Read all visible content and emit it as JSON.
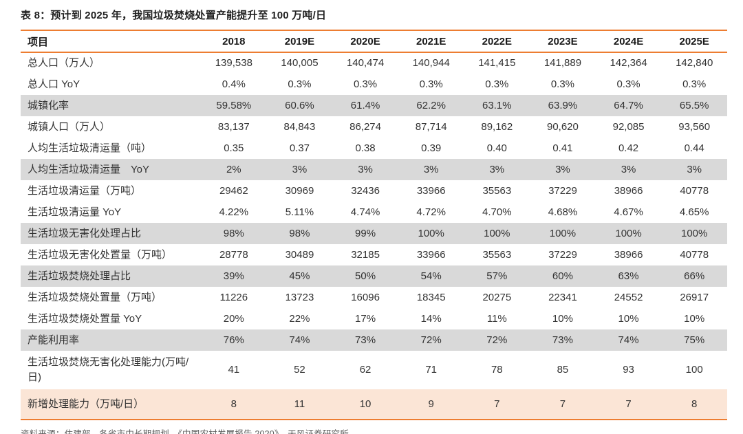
{
  "title": "表 8：预计到 2025 年，我国垃圾焚烧处置产能提升至 100 万吨/日",
  "source": "资料来源：住建部、各省市中长期规划、《中国农村发展报告 2020》、天风证券研究所",
  "colors": {
    "accent_orange": "#ED7D31",
    "row_gray": "#D9D9D9",
    "row_peach": "#FBE5D6"
  },
  "table": {
    "columns": [
      "项目",
      "2018",
      "2019E",
      "2020E",
      "2021E",
      "2022E",
      "2023E",
      "2024E",
      "2025E"
    ],
    "rows": [
      {
        "label": "总人口（万人）",
        "shade": "white",
        "tall": false,
        "values": [
          "139,538",
          "140,005",
          "140,474",
          "140,944",
          "141,415",
          "141,889",
          "142,364",
          "142,840"
        ]
      },
      {
        "label": "总人口 YoY",
        "shade": "white",
        "tall": false,
        "values": [
          "0.4%",
          "0.3%",
          "0.3%",
          "0.3%",
          "0.3%",
          "0.3%",
          "0.3%",
          "0.3%"
        ]
      },
      {
        "label": "城镇化率",
        "shade": "gray",
        "tall": false,
        "values": [
          "59.58%",
          "60.6%",
          "61.4%",
          "62.2%",
          "63.1%",
          "63.9%",
          "64.7%",
          "65.5%"
        ]
      },
      {
        "label": "城镇人口（万人）",
        "shade": "white",
        "tall": false,
        "values": [
          "83,137",
          "84,843",
          "86,274",
          "87,714",
          "89,162",
          "90,620",
          "92,085",
          "93,560"
        ]
      },
      {
        "label": "人均生活垃圾清运量（吨）",
        "shade": "white",
        "tall": false,
        "values": [
          "0.35",
          "0.37",
          "0.38",
          "0.39",
          "0.40",
          "0.41",
          "0.42",
          "0.44"
        ]
      },
      {
        "label": "人均生活垃圾清运量　YoY",
        "shade": "gray",
        "tall": false,
        "values": [
          "2%",
          "3%",
          "3%",
          "3%",
          "3%",
          "3%",
          "3%",
          "3%"
        ]
      },
      {
        "label": "生活垃圾清运量（万吨）",
        "shade": "white",
        "tall": false,
        "values": [
          "29462",
          "30969",
          "32436",
          "33966",
          "35563",
          "37229",
          "38966",
          "40778"
        ]
      },
      {
        "label": "生活垃圾清运量 YoY",
        "shade": "white",
        "tall": false,
        "values": [
          "4.22%",
          "5.11%",
          "4.74%",
          "4.72%",
          "4.70%",
          "4.68%",
          "4.67%",
          "4.65%"
        ]
      },
      {
        "label": "生活垃圾无害化处理占比",
        "shade": "gray",
        "tall": false,
        "values": [
          "98%",
          "98%",
          "99%",
          "100%",
          "100%",
          "100%",
          "100%",
          "100%"
        ]
      },
      {
        "label": "生活垃圾无害化处置量（万吨）",
        "shade": "white",
        "tall": false,
        "values": [
          "28778",
          "30489",
          "32185",
          "33966",
          "35563",
          "37229",
          "38966",
          "40778"
        ]
      },
      {
        "label": "生活垃圾焚烧处理占比",
        "shade": "gray",
        "tall": false,
        "values": [
          "39%",
          "45%",
          "50%",
          "54%",
          "57%",
          "60%",
          "63%",
          "66%"
        ]
      },
      {
        "label": "生活垃圾焚烧处置量（万吨）",
        "shade": "white",
        "tall": false,
        "values": [
          "11226",
          "13723",
          "16096",
          "18345",
          "20275",
          "22341",
          "24552",
          "26917"
        ]
      },
      {
        "label": "生活垃圾焚烧处置量 YoY",
        "shade": "white",
        "tall": false,
        "values": [
          "20%",
          "22%",
          "17%",
          "14%",
          "11%",
          "10%",
          "10%",
          "10%"
        ]
      },
      {
        "label": "产能利用率",
        "shade": "gray",
        "tall": false,
        "values": [
          "76%",
          "74%",
          "73%",
          "72%",
          "72%",
          "73%",
          "74%",
          "75%"
        ]
      },
      {
        "label": "生活垃圾焚烧无害化处理能力(万吨/日)",
        "shade": "white",
        "tall": true,
        "values": [
          "41",
          "52",
          "62",
          "71",
          "78",
          "85",
          "93",
          "100"
        ]
      },
      {
        "label": "新增处理能力（万吨/日）",
        "shade": "peach",
        "tall": false,
        "values": [
          "8",
          "11",
          "10",
          "9",
          "7",
          "7",
          "7",
          "8"
        ]
      }
    ]
  }
}
